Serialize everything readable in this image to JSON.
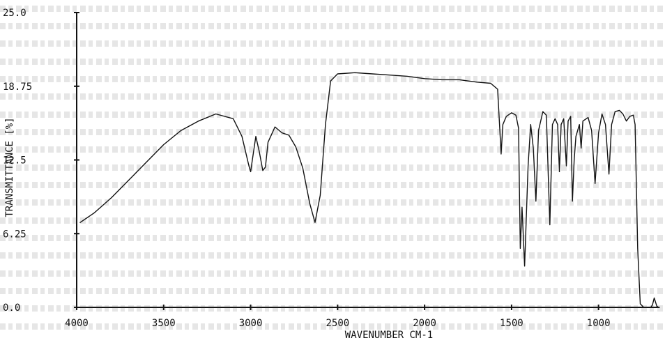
{
  "chart_data": {
    "type": "line",
    "title": "",
    "xlabel": "WAVENUMBER CM-1",
    "ylabel": "TRANSMITTANCE [%]",
    "xlim": [
      4000,
      650
    ],
    "ylim": [
      0.0,
      25.0
    ],
    "x_ticks": [
      4000,
      3500,
      3000,
      2500,
      2000,
      1500,
      1000
    ],
    "x_tick_labels": [
      "4000",
      "3500",
      "3000",
      "2500",
      "2000",
      "1500",
      "1000"
    ],
    "y_ticks": [
      0.0,
      6.25,
      12.5,
      18.75,
      25.0
    ],
    "y_tick_labels": [
      "0.0",
      "6.25",
      "12.5",
      "18.75",
      "25.0"
    ],
    "grid": false,
    "series": [
      {
        "values": [
          [
            3980,
            7.2
          ],
          [
            3900,
            8.0
          ],
          [
            3800,
            9.3
          ],
          [
            3700,
            10.8
          ],
          [
            3600,
            12.3
          ],
          [
            3500,
            13.8
          ],
          [
            3400,
            15.0
          ],
          [
            3300,
            15.8
          ],
          [
            3200,
            16.4
          ],
          [
            3100,
            16.0
          ],
          [
            3050,
            14.5
          ],
          [
            3010,
            12.0
          ],
          [
            3000,
            11.5
          ],
          [
            2990,
            12.5
          ],
          [
            2970,
            14.5
          ],
          [
            2950,
            13.2
          ],
          [
            2930,
            11.6
          ],
          [
            2915,
            11.9
          ],
          [
            2900,
            14.0
          ],
          [
            2860,
            15.3
          ],
          [
            2820,
            14.8
          ],
          [
            2780,
            14.6
          ],
          [
            2740,
            13.6
          ],
          [
            2700,
            11.8
          ],
          [
            2660,
            8.8
          ],
          [
            2630,
            7.2
          ],
          [
            2600,
            9.5
          ],
          [
            2570,
            15.5
          ],
          [
            2540,
            19.2
          ],
          [
            2500,
            19.8
          ],
          [
            2400,
            19.9
          ],
          [
            2300,
            19.8
          ],
          [
            2200,
            19.7
          ],
          [
            2100,
            19.6
          ],
          [
            2000,
            19.4
          ],
          [
            1900,
            19.3
          ],
          [
            1800,
            19.3
          ],
          [
            1700,
            19.1
          ],
          [
            1620,
            19.0
          ],
          [
            1580,
            18.5
          ],
          [
            1560,
            13.0
          ],
          [
            1550,
            15.5
          ],
          [
            1530,
            16.2
          ],
          [
            1500,
            16.5
          ],
          [
            1475,
            16.3
          ],
          [
            1460,
            15.2
          ],
          [
            1450,
            5.0
          ],
          [
            1440,
            8.5
          ],
          [
            1425,
            3.5
          ],
          [
            1405,
            12.0
          ],
          [
            1390,
            15.5
          ],
          [
            1375,
            13.5
          ],
          [
            1360,
            9.0
          ],
          [
            1345,
            15.0
          ],
          [
            1320,
            16.6
          ],
          [
            1300,
            16.3
          ],
          [
            1280,
            7.0
          ],
          [
            1265,
            15.5
          ],
          [
            1250,
            16.0
          ],
          [
            1235,
            15.5
          ],
          [
            1225,
            11.5
          ],
          [
            1215,
            15.5
          ],
          [
            1200,
            16.0
          ],
          [
            1185,
            12.0
          ],
          [
            1175,
            15.8
          ],
          [
            1160,
            16.2
          ],
          [
            1150,
            9.0
          ],
          [
            1140,
            12.5
          ],
          [
            1130,
            14.5
          ],
          [
            1110,
            15.5
          ],
          [
            1100,
            13.5
          ],
          [
            1090,
            15.8
          ],
          [
            1060,
            16.1
          ],
          [
            1040,
            15.0
          ],
          [
            1020,
            10.5
          ],
          [
            1000,
            14.8
          ],
          [
            980,
            16.4
          ],
          [
            960,
            15.5
          ],
          [
            940,
            11.3
          ],
          [
            925,
            15.5
          ],
          [
            905,
            16.6
          ],
          [
            880,
            16.7
          ],
          [
            860,
            16.4
          ],
          [
            840,
            15.8
          ],
          [
            820,
            16.2
          ],
          [
            800,
            16.3
          ],
          [
            790,
            15.5
          ],
          [
            775,
            5.0
          ],
          [
            760,
            0.3
          ],
          [
            740,
            0.0
          ],
          [
            720,
            0.0
          ],
          [
            700,
            0.0
          ],
          [
            690,
            0.2
          ],
          [
            680,
            0.8
          ],
          [
            665,
            0.1
          ],
          [
            655,
            0.0
          ],
          [
            650,
            0.0
          ]
        ]
      }
    ]
  }
}
